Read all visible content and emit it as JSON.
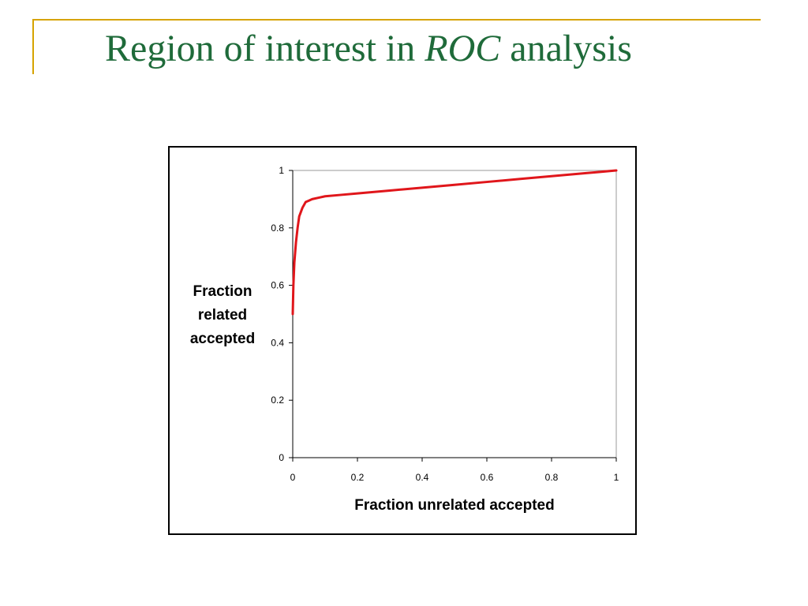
{
  "slide": {
    "title_parts": [
      "Region of interest in ",
      "ROC",
      " analysis"
    ],
    "colors": {
      "title": "#1f6b3a",
      "frame": "#d6a300",
      "curve": "#e0161b",
      "axis": "#000000",
      "plot_border": "#9a9a9a"
    }
  },
  "chart_data": {
    "type": "line",
    "title": "",
    "xlabel": "Fraction unrelated accepted",
    "ylabel_lines": [
      "Fraction",
      "related",
      "accepted"
    ],
    "xlim": [
      0,
      1
    ],
    "ylim": [
      0,
      1
    ],
    "x_ticks": [
      "0",
      "0.2",
      "0.4",
      "0.6",
      "0.8",
      "1"
    ],
    "y_ticks": [
      "0",
      "0.2",
      "0.4",
      "0.6",
      "0.8",
      "1"
    ],
    "grid": false,
    "legend": "none",
    "series": [
      {
        "color": "#e0161b",
        "x": [
          0.0,
          0.002,
          0.005,
          0.01,
          0.015,
          0.02,
          0.03,
          0.04,
          0.05,
          0.06,
          0.08,
          0.1,
          0.15,
          0.2,
          0.3,
          0.4,
          0.5,
          0.6,
          0.7,
          0.8,
          0.9,
          0.95,
          1.0
        ],
        "y": [
          0.5,
          0.6,
          0.68,
          0.75,
          0.8,
          0.84,
          0.87,
          0.89,
          0.895,
          0.9,
          0.905,
          0.91,
          0.915,
          0.92,
          0.93,
          0.94,
          0.95,
          0.96,
          0.97,
          0.98,
          0.99,
          0.995,
          1.0
        ]
      }
    ]
  }
}
